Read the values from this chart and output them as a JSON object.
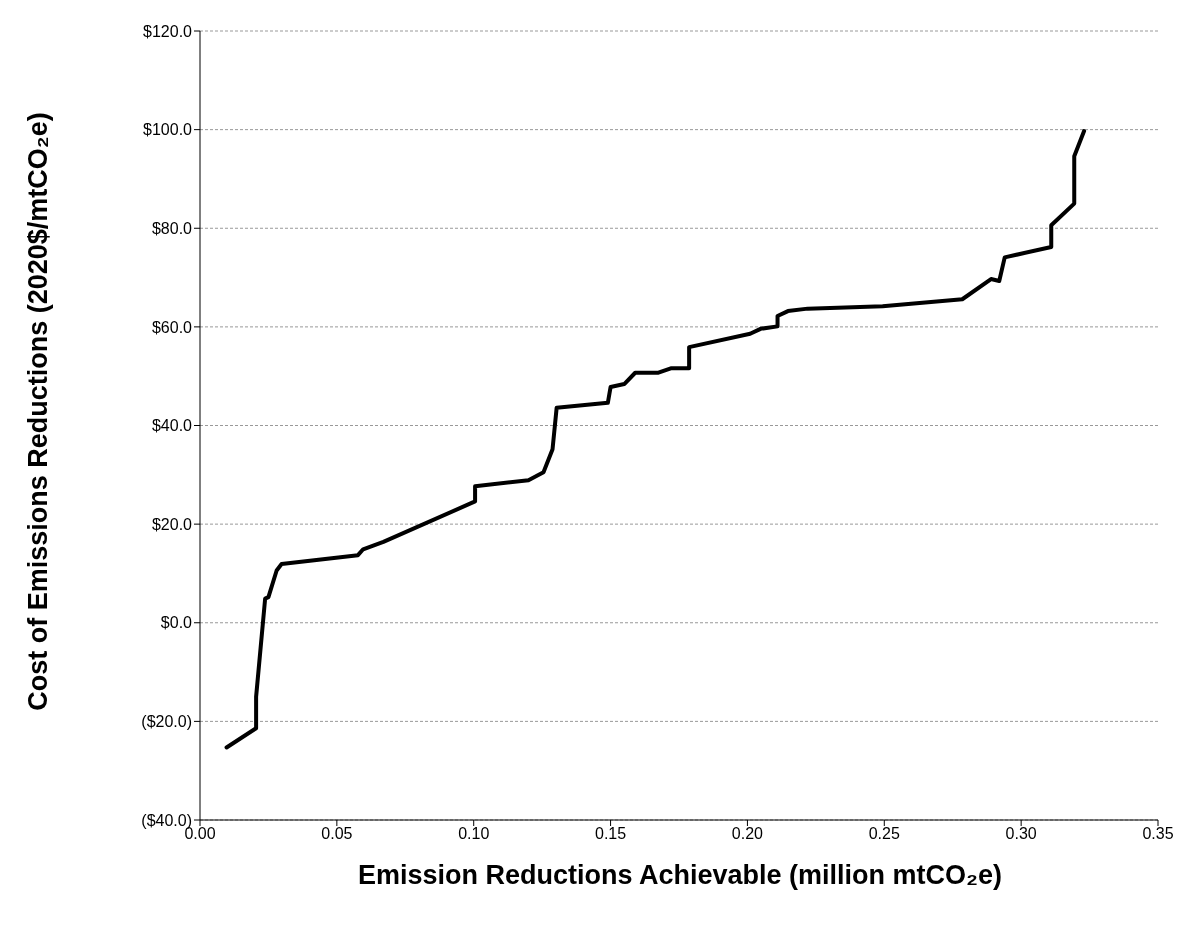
{
  "chart_data": {
    "type": "line",
    "xlabel": "Emission Reductions Achievable (million mtCO₂e)",
    "ylabel": "Cost of Emissions Reductions (2020$/mtCO₂e)",
    "x": [
      0.0097,
      0.0205,
      0.0205,
      0.0238,
      0.025,
      0.028,
      0.0298,
      0.0577,
      0.0596,
      0.067,
      0.1005,
      0.1005,
      0.12,
      0.1255,
      0.1288,
      0.1303,
      0.149,
      0.15,
      0.155,
      0.159,
      0.1675,
      0.172,
      0.1787,
      0.1787,
      0.201,
      0.2048,
      0.211,
      0.211,
      0.2148,
      0.222,
      0.2494,
      0.2785,
      0.289,
      0.292,
      0.294,
      0.311,
      0.311,
      0.3194,
      0.3194,
      0.323
    ],
    "series": [
      {
        "color": "#000000",
        "values": [
          -25.3,
          -21.4,
          -15,
          4.9,
          5.2,
          10.6,
          11.9,
          13.7,
          14.9,
          16.4,
          24.6,
          27.7,
          28.9,
          30.5,
          35.2,
          43.6,
          44.6,
          47.8,
          48.4,
          50.7,
          50.7,
          51.6,
          51.6,
          55.9,
          58.6,
          59.6,
          60.1,
          62.2,
          63.2,
          63.7,
          64.2,
          65.6,
          69.7,
          69.3,
          74.1,
          76.2,
          80.6,
          85.0,
          94.6,
          99.7
        ]
      }
    ],
    "xlim": [
      0,
      0.35
    ],
    "ylim": [
      -40,
      120
    ],
    "xticks": [
      {
        "value": 0,
        "label": "0.00"
      },
      {
        "value": 0.05,
        "label": "0.05"
      },
      {
        "value": 0.1,
        "label": "0.10"
      },
      {
        "value": 0.15,
        "label": "0.15"
      },
      {
        "value": 0.2,
        "label": "0.20"
      },
      {
        "value": 0.25,
        "label": "0.25"
      },
      {
        "value": 0.3,
        "label": "0.30"
      },
      {
        "value": 0.35,
        "label": "0.35"
      }
    ],
    "yticks": [
      {
        "value": -40,
        "label": "($40.0)"
      },
      {
        "value": -20,
        "label": "($20.0)"
      },
      {
        "value": 0,
        "label": "$0.0"
      },
      {
        "value": 20,
        "label": "$20.0"
      },
      {
        "value": 40,
        "label": "$40.0"
      },
      {
        "value": 60,
        "label": "$60.0"
      },
      {
        "value": 80,
        "label": "$80.0"
      },
      {
        "value": 100,
        "label": "$100.0"
      },
      {
        "value": 120,
        "label": "$120.0"
      }
    ],
    "grid": "y",
    "line_style": "solid"
  }
}
